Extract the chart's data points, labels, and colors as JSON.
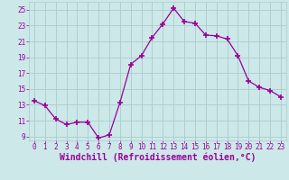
{
  "x": [
    0,
    1,
    2,
    3,
    4,
    5,
    6,
    7,
    8,
    9,
    10,
    11,
    12,
    13,
    14,
    15,
    16,
    17,
    18,
    19,
    20,
    21,
    22,
    23
  ],
  "y": [
    13.5,
    12.9,
    11.2,
    10.5,
    10.8,
    10.8,
    8.8,
    9.2,
    13.3,
    18.1,
    19.2,
    21.5,
    23.2,
    25.2,
    23.5,
    23.3,
    21.8,
    21.7,
    21.3,
    19.2,
    16.0,
    15.2,
    14.8,
    14.0
  ],
  "line_color": "#990099",
  "marker": "+",
  "marker_size": 4,
  "bg_color": "#cce8e8",
  "grid_color": "#aacccc",
  "xlabel": "Windchill (Refroidissement éolien,°C)",
  "xlim": [
    -0.5,
    23.5
  ],
  "ylim": [
    8.5,
    26
  ],
  "yticks": [
    9,
    11,
    13,
    15,
    17,
    19,
    21,
    23,
    25
  ],
  "xticks": [
    0,
    1,
    2,
    3,
    4,
    5,
    6,
    7,
    8,
    9,
    10,
    11,
    12,
    13,
    14,
    15,
    16,
    17,
    18,
    19,
    20,
    21,
    22,
    23
  ],
  "tick_color": "#990099",
  "label_color": "#990099",
  "tick_fontsize": 5.5,
  "xlabel_fontsize": 7.0
}
